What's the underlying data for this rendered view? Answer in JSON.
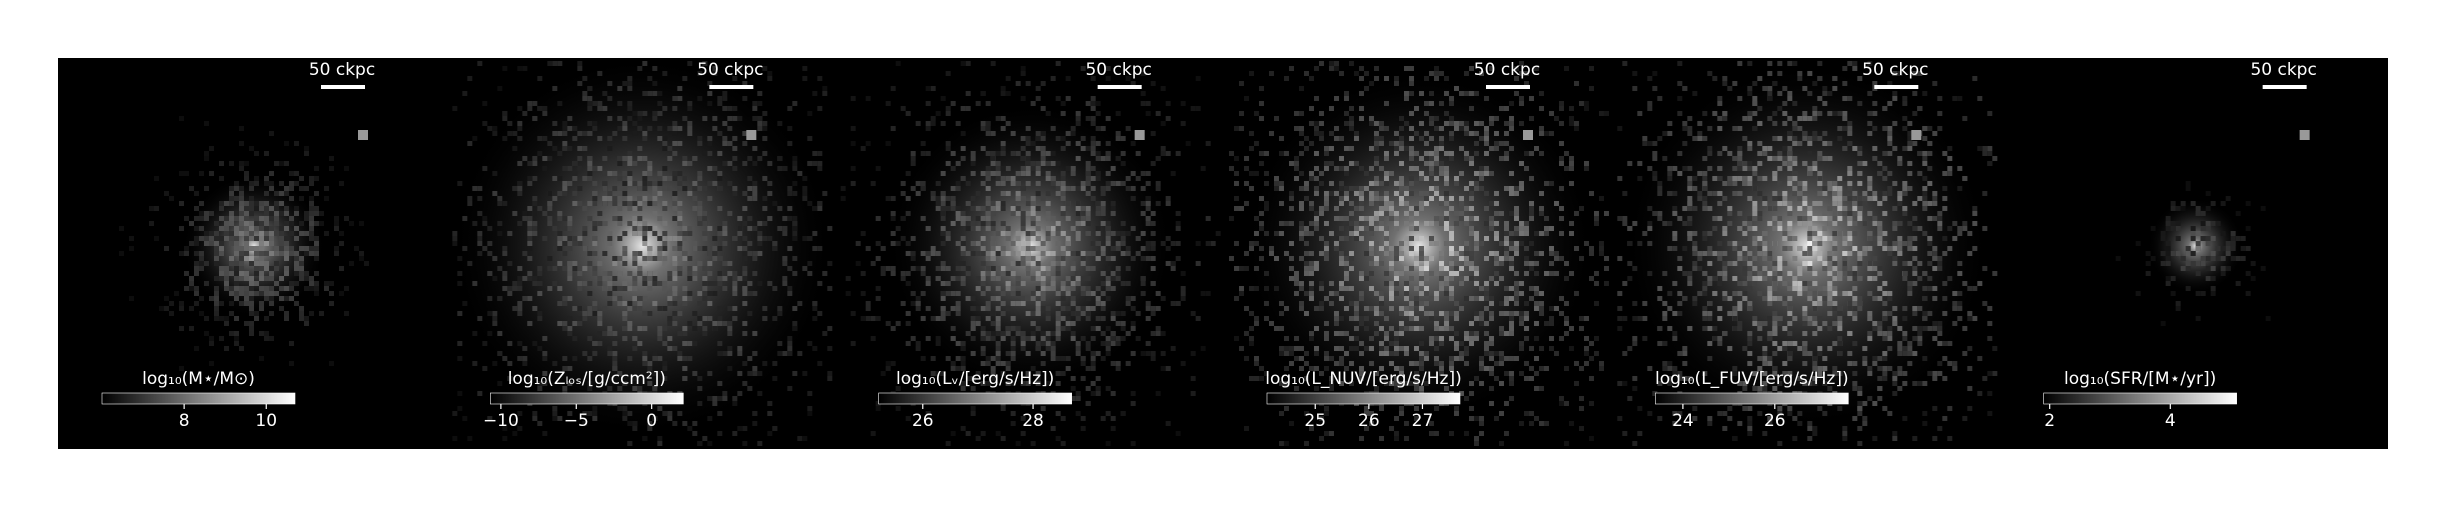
{
  "panels": [
    {
      "scale_bar": "50 ckpc",
      "colorbar": {
        "label": "log₁₀(M⋆/M⊙)",
        "lim": [
          6.0,
          10.7
        ],
        "ticks": [
          8,
          10
        ]
      }
    },
    {
      "scale_bar": "50 ckpc",
      "colorbar": {
        "label": "log₁₀(Zₗₒₛ/[g/ccm²])",
        "lim": [
          -10.7,
          2.1
        ],
        "ticks": [
          {
            "value": -10,
            "label": "−10"
          },
          {
            "value": -5,
            "label": "−5"
          },
          0
        ]
      }
    },
    {
      "scale_bar": "50 ckpc",
      "colorbar": {
        "label": "log₁₀(Lᵥ/[erg/s/Hz])",
        "lim": [
          25.2,
          28.7
        ],
        "ticks": [
          26,
          28
        ]
      }
    },
    {
      "scale_bar": "50 ckpc",
      "colorbar": {
        "label": "log₁₀(L_NUV/[erg/s/Hz])",
        "lim": [
          24.1,
          27.7
        ],
        "ticks": [
          25,
          26,
          27
        ]
      }
    },
    {
      "scale_bar": "50 ckpc",
      "colorbar": {
        "label": "log₁₀(L_FUV/[erg/s/Hz])",
        "lim": [
          23.4,
          27.6
        ],
        "ticks": [
          24,
          26
        ]
      }
    },
    {
      "scale_bar": "50 ckpc",
      "colorbar": {
        "label": "log₁₀(SFR/[M⋆/yr])",
        "lim": [
          1.9,
          5.1
        ],
        "ticks": [
          2,
          4
        ]
      }
    }
  ]
}
